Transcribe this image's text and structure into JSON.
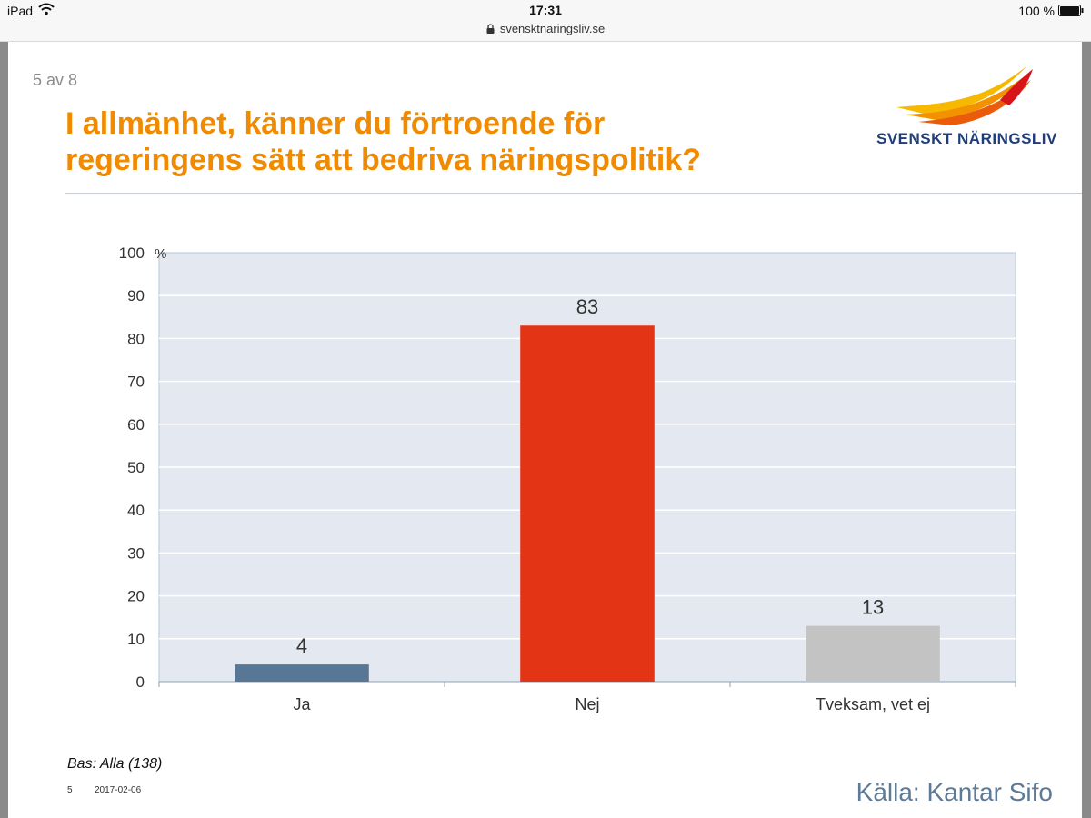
{
  "status_bar": {
    "device": "iPad",
    "time": "17:31",
    "battery": "100 %",
    "url": "svensktnaringsliv.se"
  },
  "slide": {
    "page_counter": "5 av 8",
    "title_line1": "I allmänhet, känner du förtroende för",
    "title_line2": "regeringens sätt att bedriva näringspolitik?",
    "logo_text": "SVENSKT NÄRINGSLIV",
    "footnote": "Bas: Alla (138)",
    "slide_number": "5",
    "date": "2017-02-06",
    "source": "Källa: Kantar Sifo"
  },
  "colors": {
    "title": "#f08a00",
    "bar_ja": "#587794",
    "bar_nej": "#e33516",
    "bar_tveksam": "#c3c3c3",
    "plot_bg": "#e4e8f0"
  },
  "chart_data": {
    "type": "bar",
    "title": "I allmänhet, känner du förtroende för regeringens sätt att bedriva näringspolitik?",
    "categories": [
      "Ja",
      "Nej",
      "Tveksam, vet ej"
    ],
    "values": [
      4,
      83,
      13
    ],
    "ylim": [
      0,
      100
    ],
    "yticks": [
      0,
      10,
      20,
      30,
      40,
      50,
      60,
      70,
      80,
      90,
      100
    ],
    "yunit": "%",
    "xlabel": "",
    "ylabel": "",
    "grid": true
  }
}
